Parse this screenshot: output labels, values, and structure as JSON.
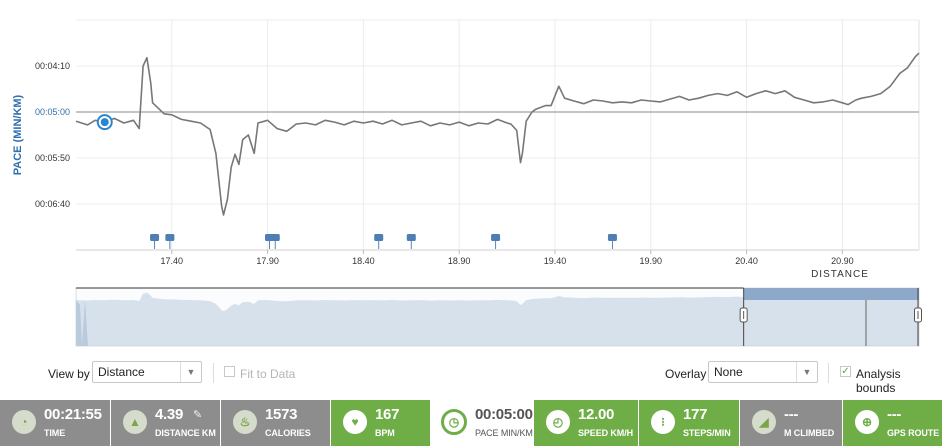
{
  "chart_data": {
    "type": "line",
    "ylabel": "PACE (MIN/KM)",
    "xlabel": "DISTANCE",
    "y_ticks": [
      "00:04:10",
      "00:05:00",
      "00:05:50",
      "00:06:40"
    ],
    "y_tick_values": [
      250,
      300,
      350,
      400
    ],
    "highlighted_y_tick": "00:05:00",
    "x_ticks": [
      "17.40",
      "17.90",
      "18.40",
      "18.90",
      "19.40",
      "19.90",
      "20.40",
      "20.90"
    ],
    "x_tick_values": [
      17.4,
      17.9,
      18.4,
      18.9,
      19.4,
      19.9,
      20.4,
      20.9
    ],
    "xlim": [
      16.9,
      21.3
    ],
    "ylim_seconds": [
      200,
      450
    ],
    "reference_line_seconds": 300,
    "series": [
      {
        "values": [
          [
            16.9,
            310
          ],
          [
            16.96,
            314
          ],
          [
            17.0,
            309
          ],
          [
            17.05,
            311
          ],
          [
            17.1,
            307
          ],
          [
            17.15,
            312
          ],
          [
            17.2,
            309
          ],
          [
            17.23,
            318
          ],
          [
            17.25,
            250
          ],
          [
            17.27,
            241
          ],
          [
            17.29,
            268
          ],
          [
            17.3,
            290
          ],
          [
            17.33,
            296
          ],
          [
            17.36,
            302
          ],
          [
            17.4,
            303
          ],
          [
            17.45,
            308
          ],
          [
            17.5,
            310
          ],
          [
            17.55,
            312
          ],
          [
            17.6,
            319
          ],
          [
            17.63,
            345
          ],
          [
            17.66,
            402
          ],
          [
            17.67,
            412
          ],
          [
            17.69,
            395
          ],
          [
            17.71,
            360
          ],
          [
            17.73,
            346
          ],
          [
            17.75,
            357
          ],
          [
            17.77,
            330
          ],
          [
            17.8,
            325
          ],
          [
            17.83,
            345
          ],
          [
            17.85,
            312
          ],
          [
            17.9,
            309
          ],
          [
            17.95,
            318
          ],
          [
            18.0,
            321
          ],
          [
            18.05,
            313
          ],
          [
            18.1,
            312
          ],
          [
            18.15,
            314
          ],
          [
            18.2,
            309
          ],
          [
            18.25,
            311
          ],
          [
            18.3,
            314
          ],
          [
            18.35,
            310
          ],
          [
            18.4,
            312
          ],
          [
            18.45,
            310
          ],
          [
            18.5,
            313
          ],
          [
            18.55,
            309
          ],
          [
            18.6,
            314
          ],
          [
            18.65,
            312
          ],
          [
            18.7,
            310
          ],
          [
            18.75,
            315
          ],
          [
            18.8,
            312
          ],
          [
            18.85,
            314
          ],
          [
            18.9,
            311
          ],
          [
            18.95,
            315
          ],
          [
            19.0,
            312
          ],
          [
            19.05,
            313
          ],
          [
            19.1,
            308
          ],
          [
            19.15,
            312
          ],
          [
            19.17,
            313
          ],
          [
            19.2,
            320
          ],
          [
            19.22,
            355
          ],
          [
            19.23,
            345
          ],
          [
            19.25,
            310
          ],
          [
            19.28,
            300
          ],
          [
            19.3,
            297
          ],
          [
            19.35,
            293
          ],
          [
            19.38,
            293
          ],
          [
            19.42,
            272
          ],
          [
            19.45,
            285
          ],
          [
            19.5,
            288
          ],
          [
            19.55,
            291
          ],
          [
            19.6,
            287
          ],
          [
            19.65,
            288
          ],
          [
            19.7,
            290
          ],
          [
            19.75,
            289
          ],
          [
            19.8,
            290
          ],
          [
            19.85,
            287
          ],
          [
            19.9,
            288
          ],
          [
            19.95,
            289
          ],
          [
            20.0,
            286
          ],
          [
            20.05,
            283
          ],
          [
            20.1,
            287
          ],
          [
            20.15,
            285
          ],
          [
            20.2,
            282
          ],
          [
            20.25,
            280
          ],
          [
            20.3,
            282
          ],
          [
            20.35,
            278
          ],
          [
            20.4,
            284
          ],
          [
            20.45,
            280
          ],
          [
            20.5,
            277
          ],
          [
            20.55,
            280
          ],
          [
            20.6,
            277
          ],
          [
            20.65,
            284
          ],
          [
            20.7,
            287
          ],
          [
            20.75,
            290
          ],
          [
            20.8,
            289
          ],
          [
            20.85,
            287
          ],
          [
            20.9,
            290
          ],
          [
            20.93,
            292
          ],
          [
            20.97,
            287
          ],
          [
            21.0,
            285
          ],
          [
            21.05,
            283
          ],
          [
            21.1,
            280
          ],
          [
            21.15,
            272
          ],
          [
            21.2,
            258
          ],
          [
            21.24,
            252
          ],
          [
            21.28,
            240
          ],
          [
            21.3,
            236
          ]
        ]
      }
    ],
    "marker_positions": [
      17.31,
      17.39,
      17.91,
      17.94,
      18.48,
      18.65,
      19.09,
      19.7
    ],
    "current_position": 17.05
  },
  "overview": {
    "selection_start_fraction": 0.792,
    "selection_end_fraction": 1.0,
    "colors": {
      "area": "#b9cbdc",
      "selected_band": "#a9bfd9",
      "selected_fill": "#5b7fae"
    }
  },
  "controls": {
    "view_by_label": "View by",
    "view_by_value": "Distance",
    "fit_to_data_label": "Fit to Data",
    "overlay_label": "Overlay",
    "overlay_value": "None",
    "analysis_bounds_label": "Analysis bounds",
    "analysis_bounds_checked": "✓"
  },
  "stats": [
    {
      "value": "00:21:55",
      "label": "TIME",
      "icon": "stopwatch-icon",
      "glyph": "◔"
    },
    {
      "value": "4.39",
      "label": "DISTANCE KM",
      "icon": "distance-icon",
      "glyph": "▲",
      "edit_glyph": "✎"
    },
    {
      "value": "1573",
      "label": "CALORIES",
      "icon": "flame-icon",
      "glyph": "♨"
    },
    {
      "value": "167",
      "label": "BPM",
      "icon": "heart-icon",
      "glyph": "♥"
    },
    {
      "value": "00:05:00",
      "label": "PACE MIN/KM",
      "icon": "pace-gauge-icon",
      "glyph": "◷"
    },
    {
      "value": "12.00",
      "label": "SPEED KM/H",
      "icon": "speedometer-icon",
      "glyph": "◴"
    },
    {
      "value": "177",
      "label": "STEPS/MIN",
      "icon": "footsteps-icon",
      "glyph": "⁝"
    },
    {
      "value": "---",
      "label": "M CLIMBED",
      "icon": "elevation-icon",
      "glyph": "◢"
    },
    {
      "value": "---",
      "label": "GPS ROUTE",
      "icon": "gps-crosshair-icon",
      "glyph": "⊕"
    }
  ],
  "colors": {
    "accent_blue": "#2f6fad",
    "line_gray": "#777777",
    "tile_gray": "#8d8d8d",
    "tile_green": "#6fae47"
  }
}
